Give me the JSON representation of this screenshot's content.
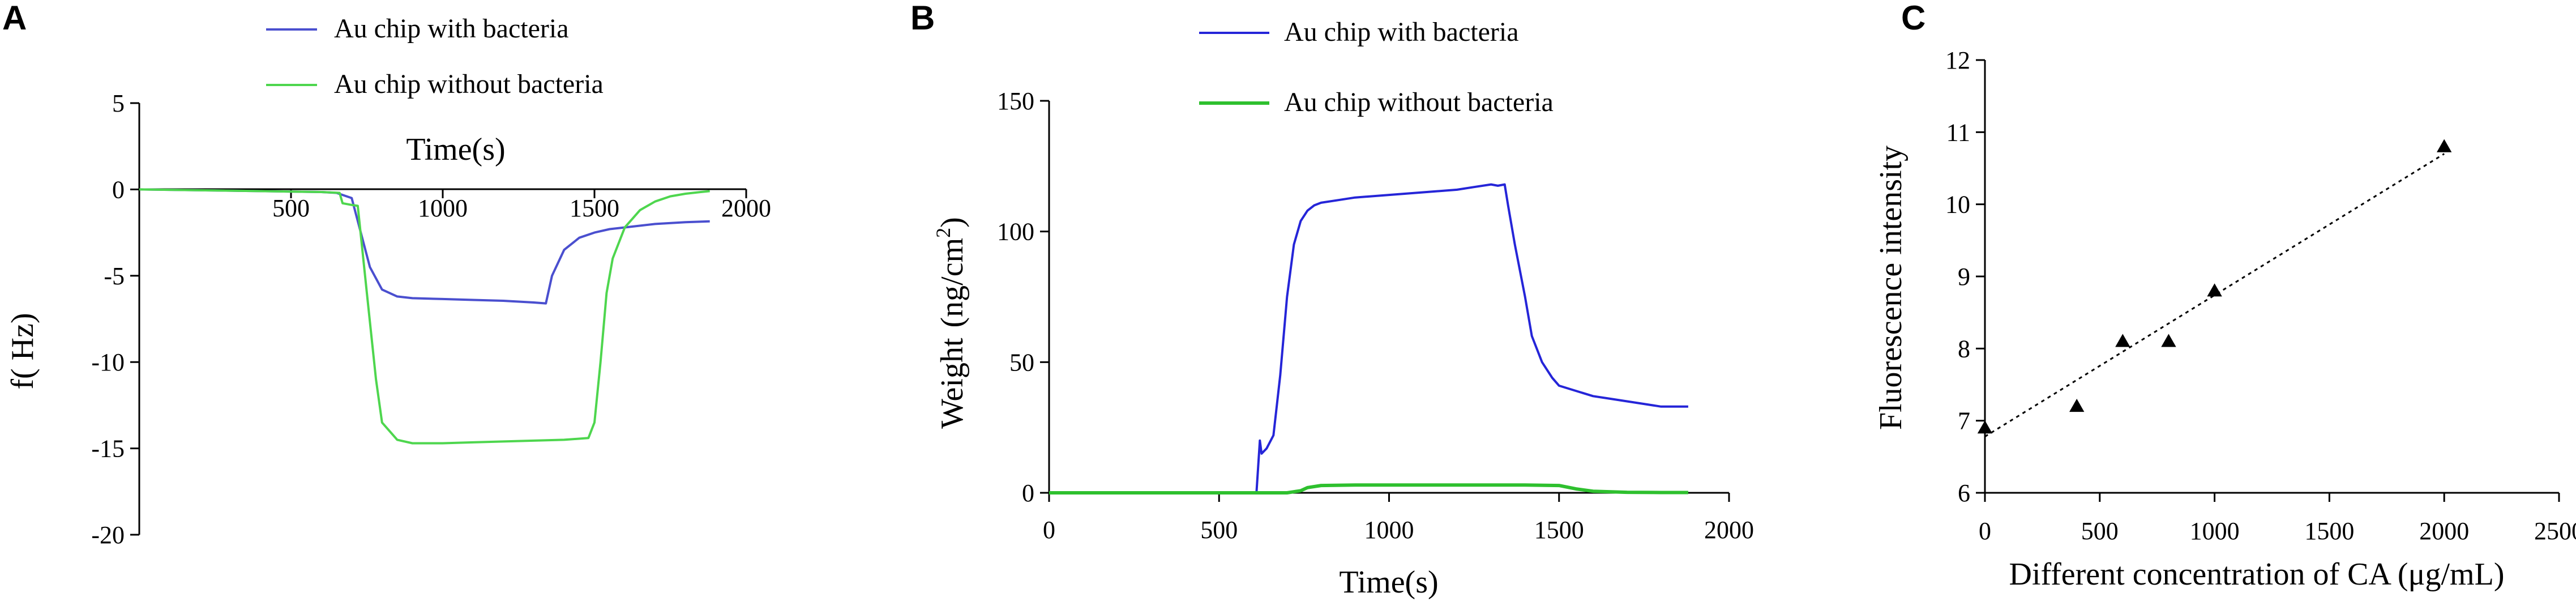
{
  "chart_data": [
    {
      "panel": "A",
      "type": "line",
      "title": "",
      "xlabel": "Time(s)",
      "ylabel": "f( Hz)",
      "xlim": [
        0,
        2000
      ],
      "ylim": [
        -20,
        5
      ],
      "xticks": [
        "500",
        "1000",
        "1500",
        "2000"
      ],
      "yticks": [
        "5",
        "0",
        "-5",
        "-10",
        "-15",
        "-20"
      ],
      "legend_position": "top",
      "series": [
        {
          "name": "Au chip with bacteria",
          "color": "#4a4fcf",
          "x": [
            0,
            200,
            400,
            600,
            650,
            700,
            760,
            800,
            850,
            900,
            1000,
            1100,
            1200,
            1300,
            1340,
            1360,
            1400,
            1450,
            1500,
            1550,
            1600,
            1700,
            1800,
            1880
          ],
          "y": [
            0,
            -0.05,
            -0.1,
            -0.15,
            -0.2,
            -0.5,
            -4.5,
            -5.8,
            -6.2,
            -6.3,
            -6.35,
            -6.4,
            -6.45,
            -6.55,
            -6.6,
            -5.0,
            -3.5,
            -2.8,
            -2.5,
            -2.3,
            -2.2,
            -2.0,
            -1.9,
            -1.85
          ]
        },
        {
          "name": "Au chip without bacteria",
          "color": "#4ed64e",
          "x": [
            0,
            200,
            400,
            600,
            660,
            670,
            700,
            720,
            750,
            780,
            800,
            850,
            900,
            1000,
            1100,
            1200,
            1300,
            1400,
            1480,
            1500,
            1520,
            1540,
            1560,
            1600,
            1650,
            1700,
            1750,
            1800,
            1850,
            1880
          ],
          "y": [
            0,
            -0.05,
            -0.1,
            -0.15,
            -0.2,
            -0.8,
            -0.9,
            -0.95,
            -6.0,
            -11.0,
            -13.5,
            -14.5,
            -14.7,
            -14.7,
            -14.65,
            -14.6,
            -14.55,
            -14.5,
            -14.4,
            -13.5,
            -10.0,
            -6.0,
            -4.0,
            -2.2,
            -1.2,
            -0.7,
            -0.4,
            -0.25,
            -0.15,
            -0.1
          ]
        }
      ]
    },
    {
      "panel": "B",
      "type": "line",
      "title": "",
      "xlabel": "Time(s)",
      "ylabel": "Weight (ng/cm²)",
      "ylabel_main": "Weight",
      "ylabel_unit": "(ng/cm",
      "ylabel_sup": "2",
      "ylabel_close": ")",
      "xlim": [
        0,
        2000
      ],
      "ylim": [
        0,
        150
      ],
      "xticks": [
        "0",
        "500",
        "1000",
        "1500",
        "2000"
      ],
      "yticks": [
        "0",
        "50",
        "100",
        "150"
      ],
      "legend_position": "top",
      "series": [
        {
          "name": "Au chip with bacteria",
          "color": "#2525d8",
          "x": [
            0,
            610,
            620,
            625,
            640,
            660,
            680,
            700,
            720,
            740,
            760,
            780,
            800,
            850,
            900,
            1000,
            1100,
            1200,
            1250,
            1300,
            1320,
            1340,
            1350,
            1370,
            1400,
            1420,
            1450,
            1480,
            1500,
            1550,
            1600,
            1650,
            1700,
            1750,
            1800,
            1850,
            1880
          ],
          "y": [
            0,
            0,
            20,
            15,
            17,
            22,
            45,
            75,
            95,
            104,
            108,
            110,
            111,
            112,
            113,
            114,
            115,
            116,
            117,
            118,
            117.5,
            118,
            110,
            95,
            75,
            60,
            50,
            44,
            41,
            39,
            37,
            36,
            35,
            34,
            33,
            33,
            33
          ]
        },
        {
          "name": "Au chip without bacteria",
          "color": "#2ec02e",
          "x": [
            0,
            700,
            740,
            760,
            800,
            900,
            1000,
            1200,
            1400,
            1500,
            1550,
            1600,
            1700,
            1800,
            1880
          ],
          "y": [
            0,
            0,
            0.8,
            2.0,
            2.8,
            3.0,
            3.0,
            3.0,
            3.0,
            2.8,
            1.5,
            0.6,
            0.2,
            0.1,
            0.1
          ]
        }
      ]
    },
    {
      "panel": "C",
      "type": "scatter",
      "title": "",
      "xlabel": "Different concentration of CA (μg/mL)",
      "ylabel": "Fluorescence intensity",
      "xlim": [
        0,
        2500
      ],
      "ylim": [
        6,
        12
      ],
      "xticks": [
        "0",
        "500",
        "1000",
        "1500",
        "2000",
        "2500"
      ],
      "yticks": [
        "6",
        "7",
        "8",
        "9",
        "10",
        "11",
        "12"
      ],
      "series": [
        {
          "name": "",
          "marker": "triangle",
          "x": [
            0,
            400,
            600,
            800,
            1000,
            2000
          ],
          "y": [
            6.9,
            7.2,
            8.1,
            8.1,
            8.8,
            10.8
          ]
        }
      ],
      "fit_line": {
        "x": [
          0,
          2000
        ],
        "y": [
          6.78,
          10.7
        ],
        "style": "dotted"
      }
    }
  ]
}
